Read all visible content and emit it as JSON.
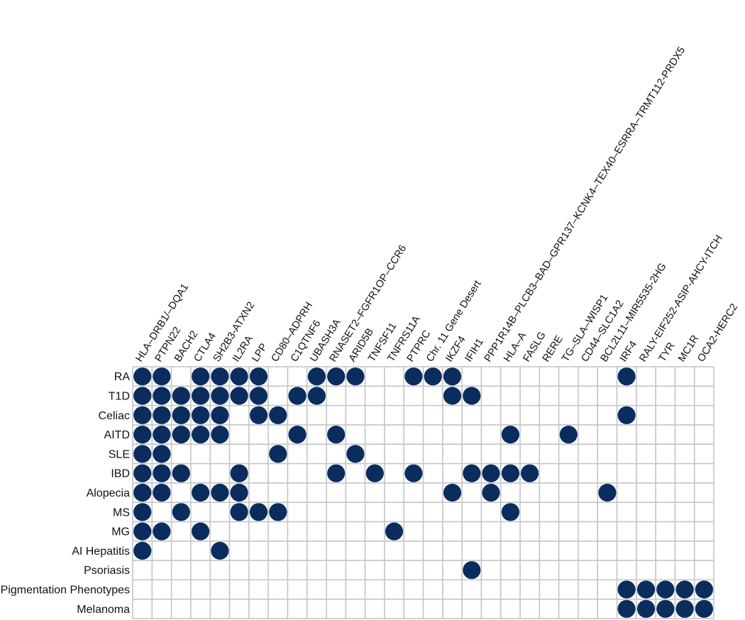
{
  "chart_data": {
    "type": "heatmap",
    "title": "",
    "xlabel": "",
    "ylabel": "",
    "dot_color": "#0a2d5e",
    "grid_color": "#c4c4c4",
    "columns": [
      "HLA–DRB1/–DQA1",
      "PTPN22",
      "BACH2",
      "CTLA4",
      "SH2B3-ATXN2",
      "IL2RA",
      "LPP",
      "CD80–ADPRH",
      "C1QTNF6",
      "UBASH3A",
      "RNASET2–FGFR1OP–CCR6",
      "ARID5B",
      "TNFSF11",
      "TNFRS11A",
      "PTPRC",
      "Chr. 11 Gene Desert",
      "IKZF4",
      "IFIH1",
      "PPP1R14B–PLCB3–BAD–GPR137–KCNK4–TEX40–ESRRA–TRMT112-PRDX5",
      "HLA–A",
      "FASLG",
      "RERE",
      "TG–SLA–WISP1",
      "CD44–SLC1A2",
      "BCL2L11–MIR5535-2HG",
      "IRF4",
      "RALY-EIF252-ASIP-AHCY-ITCH",
      "TYR",
      "MC1R",
      "OCA2-HERC2"
    ],
    "rows": [
      {
        "name": "RA",
        "present": [
          0,
          1,
          3,
          4,
          5,
          6,
          9,
          10,
          11,
          14,
          15,
          16,
          25
        ]
      },
      {
        "name": "T1D",
        "present": [
          0,
          1,
          2,
          3,
          4,
          5,
          6,
          8,
          9,
          16,
          17
        ]
      },
      {
        "name": "Celiac",
        "present": [
          0,
          1,
          2,
          3,
          4,
          6,
          7,
          25
        ]
      },
      {
        "name": "AITD",
        "present": [
          0,
          1,
          2,
          3,
          4,
          8,
          10,
          19,
          22
        ]
      },
      {
        "name": "SLE",
        "present": [
          0,
          1,
          7,
          11
        ]
      },
      {
        "name": "IBD",
        "present": [
          0,
          1,
          2,
          5,
          10,
          12,
          14,
          17,
          18,
          19,
          20
        ]
      },
      {
        "name": "Alopecia",
        "present": [
          0,
          1,
          3,
          4,
          5,
          16,
          18,
          24
        ]
      },
      {
        "name": "MS",
        "present": [
          0,
          2,
          5,
          6,
          7,
          19
        ]
      },
      {
        "name": "MG",
        "present": [
          0,
          1,
          3,
          13
        ]
      },
      {
        "name": "AI Hepatitis",
        "present": [
          0,
          4
        ]
      },
      {
        "name": "Psoriasis",
        "present": [
          17
        ]
      },
      {
        "name": "Pigmentation Phenotypes",
        "present": [
          25,
          26,
          27,
          28,
          29
        ]
      },
      {
        "name": "Melanoma",
        "present": [
          25,
          26,
          27,
          28,
          29
        ]
      }
    ]
  }
}
